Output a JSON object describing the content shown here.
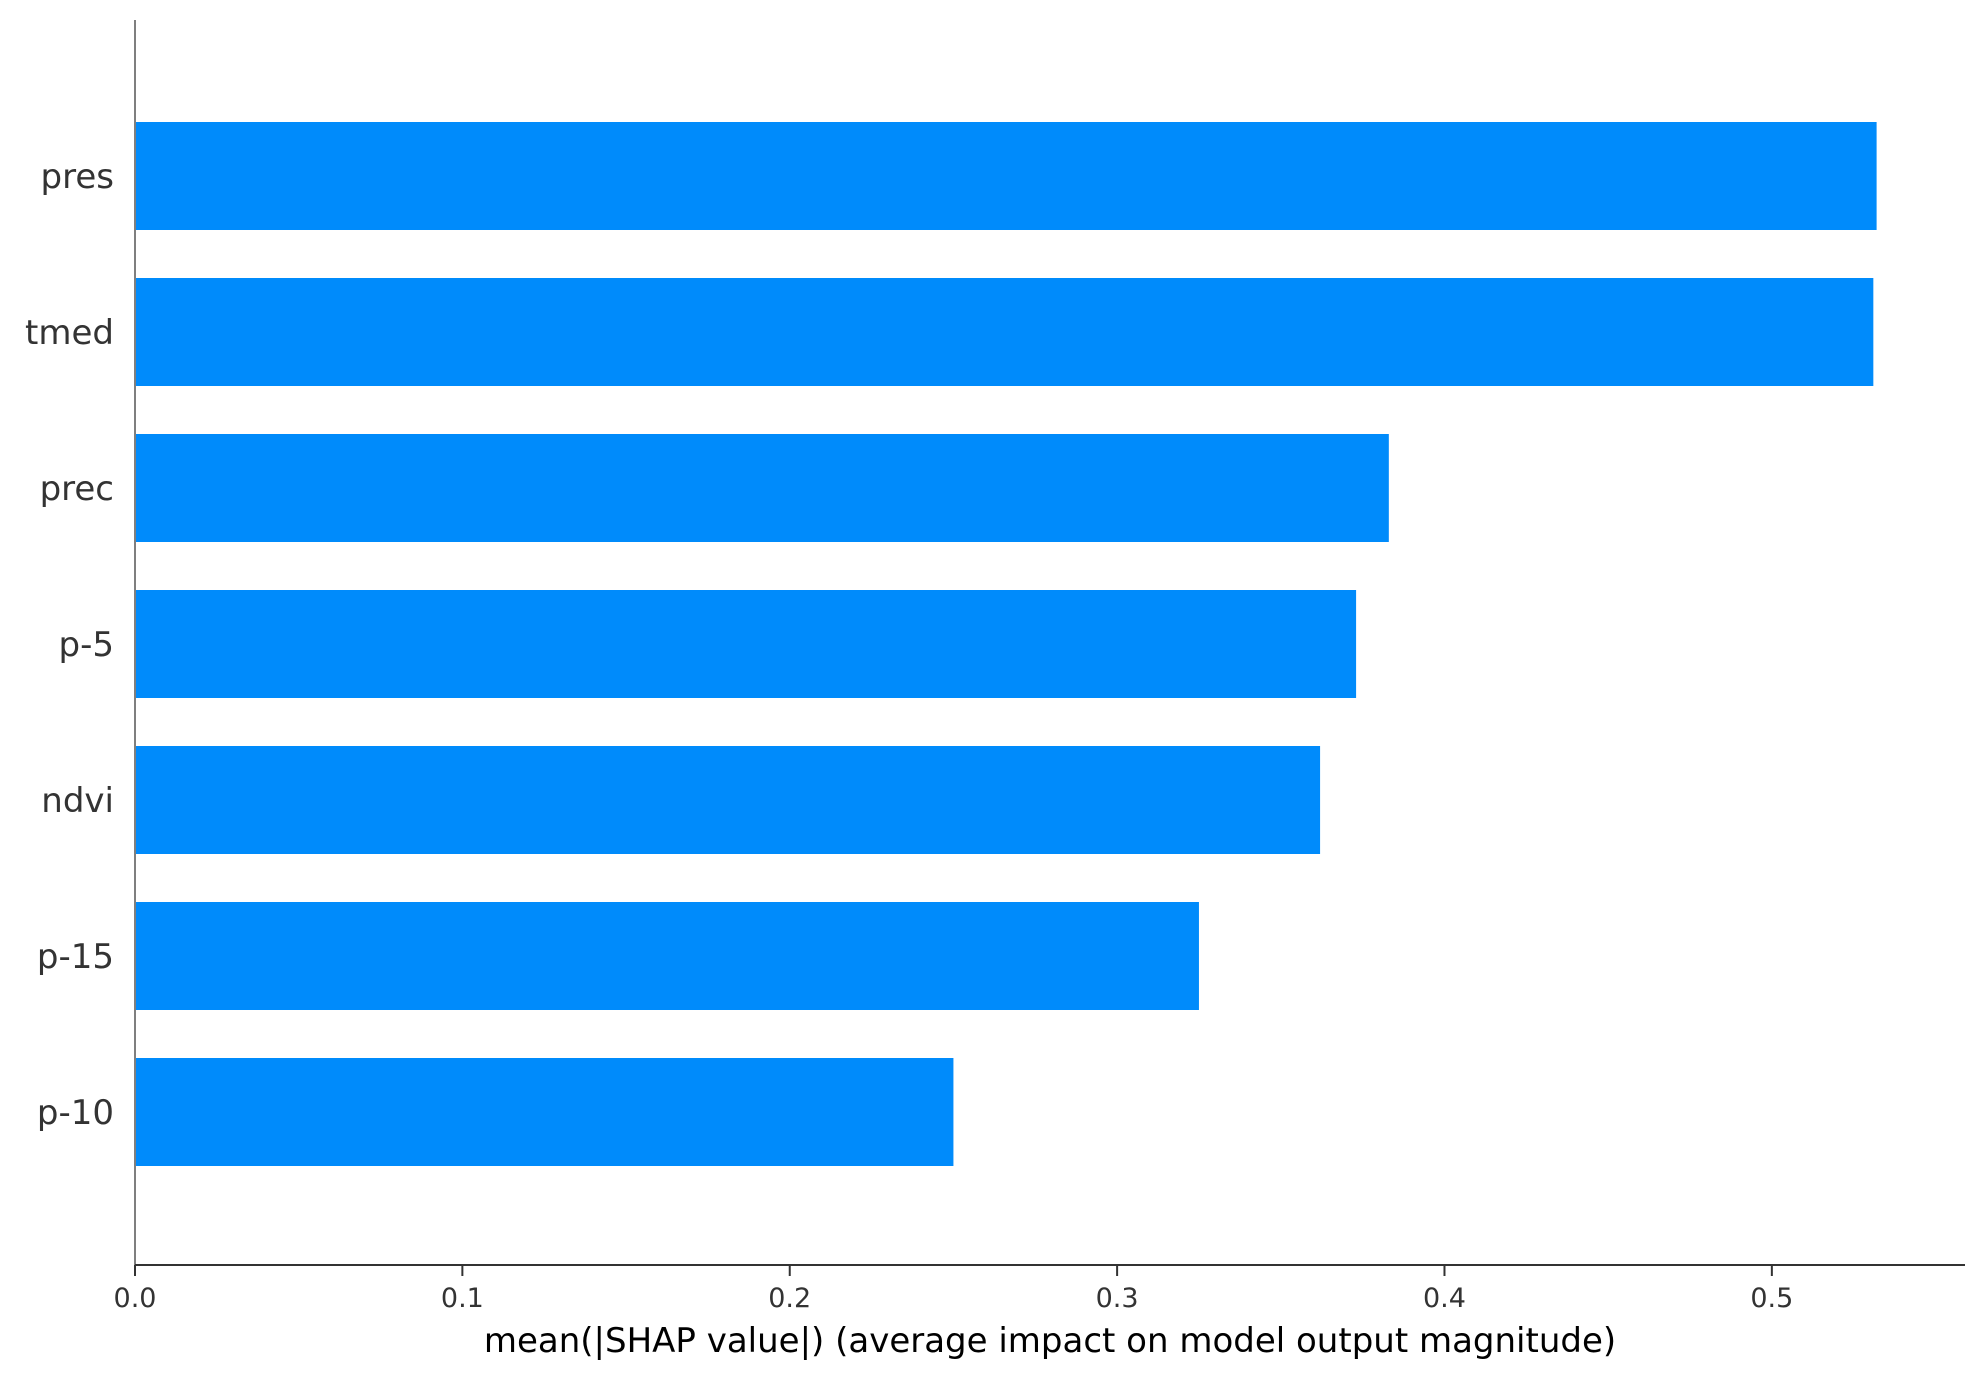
{
  "chart_data": {
    "type": "bar",
    "orientation": "horizontal",
    "categories": [
      "pres",
      "tmed",
      "prec",
      "p-5",
      "ndvi",
      "p-15",
      "p-10"
    ],
    "values": [
      0.532,
      0.531,
      0.383,
      0.373,
      0.362,
      0.325,
      0.25
    ],
    "xlabel": "mean(|SHAP value|) (average impact on model output magnitude)",
    "xticks": [
      0.0,
      0.1,
      0.2,
      0.3,
      0.4,
      0.5
    ],
    "xtick_labels": [
      "0.0",
      "0.1",
      "0.2",
      "0.3",
      "0.4",
      "0.5"
    ],
    "xlim": [
      0,
      0.559
    ],
    "grid": false,
    "bar_color": "#008bfb"
  }
}
